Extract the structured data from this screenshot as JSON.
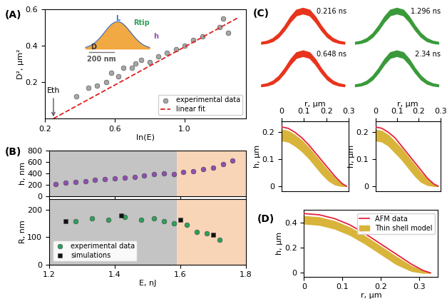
{
  "chart_data": [
    {
      "type": "scatter",
      "panel_label": "(A)",
      "x_label": "ln(E)",
      "y_label": "D², μm²",
      "xlim": [
        0.2,
        1.35
      ],
      "ylim": [
        0,
        0.6
      ],
      "xticks": [
        0.2,
        0.6,
        1.0
      ],
      "yticks": [
        0.2,
        0.4,
        0.6
      ],
      "legend": "lower right",
      "series": [
        {
          "name": "experimental data",
          "type": "scatter",
          "color": "#a6a6a6",
          "marker": "circle",
          "x": [
            0.38,
            0.45,
            0.5,
            0.55,
            0.58,
            0.62,
            0.65,
            0.7,
            0.72,
            0.75,
            0.8,
            0.85,
            0.9,
            0.95,
            1.0,
            1.05,
            1.1,
            1.2,
            1.22,
            1.25
          ],
          "values": [
            0.12,
            0.17,
            0.18,
            0.2,
            0.25,
            0.23,
            0.28,
            0.28,
            0.3,
            0.32,
            0.31,
            0.34,
            0.36,
            0.38,
            0.4,
            0.43,
            0.45,
            0.5,
            0.55,
            0.47
          ]
        },
        {
          "name": "linear fit",
          "type": "line",
          "color": "#e02020",
          "line_style": "dashed",
          "x": [
            0.25,
            1.3
          ],
          "values": [
            0,
            0.55
          ]
        }
      ],
      "annotations": [
        {
          "text": "Eth",
          "x": 0.25
        }
      ],
      "inset_labels": [
        "L",
        "Rtip",
        "D",
        "h",
        "200 nm"
      ]
    },
    {
      "type": "scatter",
      "panel_label": "(B)",
      "y_label": "h, nm",
      "xlim": [
        1.2,
        1.8
      ],
      "ylim": [
        0,
        800
      ],
      "xticks": [
        1.2,
        1.4,
        1.6,
        1.8
      ],
      "yticks": [
        0,
        200,
        400,
        600,
        800
      ],
      "tick_labels": "y",
      "regions": [
        {
          "x": [
            1.2,
            1.59
          ],
          "color": "#9e9e9e"
        },
        {
          "x": [
            1.59,
            1.8
          ],
          "color": "#f6b98a"
        }
      ],
      "series": [
        {
          "name": "h",
          "type": "scatter",
          "color": "#8e4fb0",
          "marker": "circle",
          "x": [
            1.22,
            1.25,
            1.28,
            1.31,
            1.34,
            1.37,
            1.4,
            1.43,
            1.46,
            1.49,
            1.52,
            1.55,
            1.58,
            1.61,
            1.64,
            1.67,
            1.7,
            1.73,
            1.76
          ],
          "values": [
            210,
            230,
            250,
            260,
            280,
            300,
            310,
            320,
            340,
            360,
            380,
            400,
            390,
            420,
            440,
            470,
            500,
            560,
            620
          ]
        }
      ]
    },
    {
      "type": "scatter",
      "x_label": "E, nJ",
      "y_label": "R, nm",
      "xlim": [
        1.2,
        1.8
      ],
      "ylim": [
        0,
        240
      ],
      "xticks": [
        1.2,
        1.4,
        1.6,
        1.8
      ],
      "yticks": [
        0,
        100,
        200
      ],
      "legend": "lower left",
      "regions": [
        {
          "x": [
            1.2,
            1.59
          ],
          "color": "#9e9e9e"
        },
        {
          "x": [
            1.59,
            1.8
          ],
          "color": "#f6b98a"
        }
      ],
      "series": [
        {
          "name": "experimental data",
          "type": "scatter",
          "color": "#2ca05a",
          "marker": "circle",
          "x": [
            1.28,
            1.33,
            1.38,
            1.43,
            1.48,
            1.52,
            1.55,
            1.58,
            1.62,
            1.65,
            1.68,
            1.72
          ],
          "values": [
            160,
            170,
            165,
            175,
            165,
            170,
            160,
            150,
            145,
            120,
            115,
            90
          ]
        },
        {
          "name": "simulations",
          "type": "scatter",
          "color": "#111111",
          "marker": "square",
          "x": [
            1.25,
            1.42,
            1.6,
            1.7
          ],
          "values": [
            160,
            180,
            165,
            110
          ]
        }
      ]
    },
    {
      "type": "area",
      "panel_label": "(C)",
      "annotation": "0.216 ns",
      "color": "#e8341c",
      "x": [
        0,
        0.07,
        0.14,
        0.21,
        0.28,
        0.35,
        0.42,
        0.5,
        0.58,
        0.65,
        0.72,
        0.79,
        0.86,
        0.93,
        1.0
      ],
      "upper": [
        0.05,
        0.08,
        0.15,
        0.28,
        0.48,
        0.72,
        0.9,
        0.95,
        0.9,
        0.72,
        0.48,
        0.28,
        0.15,
        0.08,
        0.05
      ],
      "lower": [
        0,
        0.02,
        0.07,
        0.18,
        0.36,
        0.58,
        0.75,
        0.8,
        0.75,
        0.58,
        0.36,
        0.18,
        0.07,
        0.02,
        0
      ]
    },
    {
      "type": "area",
      "annotation": "1.296 ns",
      "color": "#3a9a3a",
      "x": [
        0,
        0.07,
        0.14,
        0.21,
        0.28,
        0.35,
        0.42,
        0.5,
        0.58,
        0.65,
        0.72,
        0.79,
        0.86,
        0.93,
        1.0
      ],
      "upper": [
        0.05,
        0.08,
        0.15,
        0.28,
        0.48,
        0.72,
        0.9,
        0.95,
        0.9,
        0.72,
        0.48,
        0.28,
        0.15,
        0.08,
        0.05
      ],
      "lower": [
        0,
        0.02,
        0.07,
        0.18,
        0.36,
        0.58,
        0.75,
        0.8,
        0.75,
        0.58,
        0.36,
        0.18,
        0.07,
        0.02,
        0
      ]
    },
    {
      "type": "area",
      "annotation": "0.648 ns",
      "color": "#e8341c",
      "x": [
        0,
        0.07,
        0.14,
        0.21,
        0.28,
        0.35,
        0.42,
        0.5,
        0.58,
        0.65,
        0.72,
        0.79,
        0.86,
        0.93,
        1.0
      ],
      "upper": [
        0.05,
        0.08,
        0.15,
        0.28,
        0.48,
        0.72,
        0.9,
        0.95,
        0.9,
        0.72,
        0.48,
        0.28,
        0.15,
        0.08,
        0.05
      ],
      "lower": [
        0,
        0.02,
        0.07,
        0.18,
        0.36,
        0.58,
        0.75,
        0.8,
        0.75,
        0.58,
        0.36,
        0.18,
        0.07,
        0.02,
        0
      ]
    },
    {
      "type": "area",
      "annotation": "2.34 ns",
      "color": "#3a9a3a",
      "x": [
        0,
        0.07,
        0.14,
        0.21,
        0.28,
        0.35,
        0.42,
        0.5,
        0.58,
        0.65,
        0.72,
        0.79,
        0.86,
        0.93,
        1.0
      ],
      "upper": [
        0.05,
        0.08,
        0.15,
        0.28,
        0.48,
        0.72,
        0.9,
        0.95,
        0.9,
        0.72,
        0.48,
        0.28,
        0.15,
        0.08,
        0.05
      ],
      "lower": [
        0,
        0.02,
        0.07,
        0.18,
        0.36,
        0.58,
        0.75,
        0.8,
        0.75,
        0.58,
        0.36,
        0.18,
        0.07,
        0.02,
        0
      ]
    },
    {
      "type": "line",
      "x_label": "r, μm",
      "y_label": "h, μm",
      "xlim": [
        0,
        0.3
      ],
      "ylim": [
        -0.02,
        0.24
      ],
      "xticks": [
        0,
        0.1,
        0.2,
        0.3
      ],
      "yticks": [
        0,
        0.1,
        0.2
      ],
      "series": [
        {
          "name": "Thin shell model",
          "type": "band",
          "color": "#d8b43a",
          "x": [
            0,
            0.03,
            0.06,
            0.09,
            0.12,
            0.15,
            0.18,
            0.21,
            0.24,
            0.27,
            0.29
          ],
          "values": [
            0.21,
            0.205,
            0.19,
            0.17,
            0.145,
            0.115,
            0.085,
            0.055,
            0.028,
            0.008,
            0
          ],
          "lower": [
            0.17,
            0.165,
            0.15,
            0.13,
            0.105,
            0.075,
            0.045,
            0.02,
            0.005,
            0,
            0
          ]
        },
        {
          "name": "AFM data",
          "type": "line",
          "color": "#e8203a",
          "line_style": "solid",
          "x": [
            0,
            0.03,
            0.06,
            0.09,
            0.12,
            0.15,
            0.18,
            0.21,
            0.24,
            0.27,
            0.29
          ],
          "values": [
            0.22,
            0.215,
            0.2,
            0.18,
            0.155,
            0.125,
            0.095,
            0.065,
            0.035,
            0.01,
            0
          ]
        }
      ]
    },
    {
      "type": "line",
      "x_label": "r, μm",
      "y_label": "h, μm",
      "xlim": [
        0,
        0.3
      ],
      "ylim": [
        -0.02,
        0.24
      ],
      "xticks": [
        0,
        0.1,
        0.2,
        0.3
      ],
      "yticks": [
        0,
        0.1,
        0.2
      ],
      "series": [
        {
          "name": "Thin shell model",
          "type": "band",
          "color": "#d8b43a",
          "x": [
            0,
            0.03,
            0.06,
            0.09,
            0.12,
            0.15,
            0.18,
            0.21,
            0.24,
            0.27,
            0.29
          ],
          "values": [
            0.21,
            0.205,
            0.19,
            0.165,
            0.14,
            0.11,
            0.08,
            0.05,
            0.025,
            0.006,
            0
          ],
          "lower": [
            0.17,
            0.165,
            0.15,
            0.125,
            0.1,
            0.07,
            0.04,
            0.016,
            0.004,
            0,
            0
          ]
        },
        {
          "name": "AFM data",
          "type": "line",
          "color": "#e8203a",
          "line_style": "solid",
          "x": [
            0,
            0.03,
            0.06,
            0.09,
            0.12,
            0.15,
            0.18,
            0.21,
            0.24,
            0.27,
            0.29
          ],
          "values": [
            0.22,
            0.215,
            0.2,
            0.18,
            0.15,
            0.12,
            0.09,
            0.06,
            0.03,
            0.008,
            0
          ]
        }
      ]
    },
    {
      "type": "line",
      "panel_label": "(D)",
      "x_label": "r, μm",
      "y_label": "h, μm",
      "xlim": [
        0,
        0.35
      ],
      "ylim": [
        -0.03,
        0.5
      ],
      "xticks": [
        0,
        0.1,
        0.2,
        0.3
      ],
      "yticks": [
        0,
        0.2,
        0.4
      ],
      "legend": "upper right",
      "series": [
        {
          "name": "AFM data",
          "type": "line",
          "color": "#e8203a",
          "line_style": "solid",
          "x": [
            0,
            0.04,
            0.08,
            0.12,
            0.16,
            0.2,
            0.24,
            0.28,
            0.31,
            0.33
          ],
          "values": [
            0.47,
            0.46,
            0.43,
            0.38,
            0.31,
            0.23,
            0.15,
            0.07,
            0.02,
            0
          ]
        },
        {
          "name": "Thin shell model",
          "type": "band",
          "color": "#d8b43a",
          "x": [
            0,
            0.04,
            0.08,
            0.12,
            0.16,
            0.2,
            0.24,
            0.28,
            0.31,
            0.33
          ],
          "values": [
            0.45,
            0.44,
            0.41,
            0.36,
            0.29,
            0.21,
            0.13,
            0.055,
            0.015,
            0
          ],
          "lower": [
            0.39,
            0.38,
            0.35,
            0.3,
            0.23,
            0.15,
            0.07,
            0.015,
            0,
            0
          ]
        }
      ]
    }
  ]
}
